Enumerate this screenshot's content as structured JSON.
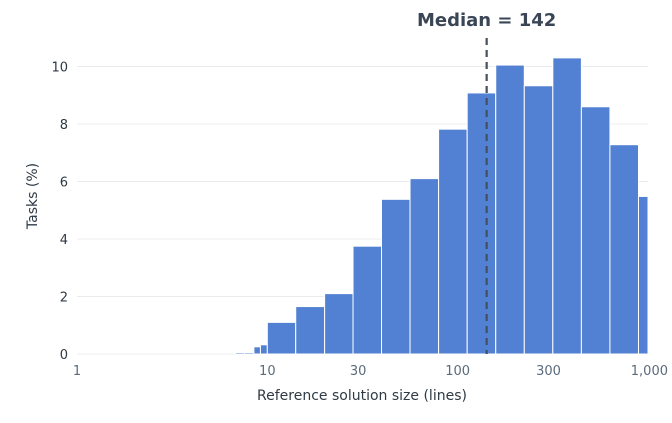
{
  "chart_data": {
    "type": "bar",
    "xlabel": "Reference solution size (lines)",
    "ylabel": "Tasks (%)",
    "x_scale": "log",
    "xlim": [
      1,
      1000
    ],
    "ylim": [
      0,
      11
    ],
    "grid": true,
    "xticks": [
      {
        "value": 1,
        "label": "1"
      },
      {
        "value": 10,
        "label": "10"
      },
      {
        "value": 30,
        "label": "30"
      },
      {
        "value": 100,
        "label": "100"
      },
      {
        "value": 300,
        "label": "300"
      },
      {
        "value": 1000,
        "label": "1,000"
      }
    ],
    "yticks": [
      0,
      2,
      4,
      6,
      8,
      10
    ],
    "bins": [
      {
        "x0": 6.8,
        "x1": 7.6,
        "value": 0.05
      },
      {
        "x0": 7.6,
        "x1": 8.5,
        "value": 0.05
      },
      {
        "x0": 8.5,
        "x1": 9.2,
        "value": 0.25
      },
      {
        "x0": 9.2,
        "x1": 10.0,
        "value": 0.32
      },
      {
        "x0": 10.0,
        "x1": 14.1,
        "value": 1.1
      },
      {
        "x0": 14.1,
        "x1": 20.0,
        "value": 1.65
      },
      {
        "x0": 20.0,
        "x1": 28.2,
        "value": 2.1
      },
      {
        "x0": 28.2,
        "x1": 39.8,
        "value": 3.75
      },
      {
        "x0": 39.8,
        "x1": 56.2,
        "value": 5.38
      },
      {
        "x0": 56.2,
        "x1": 79.4,
        "value": 6.1
      },
      {
        "x0": 79.4,
        "x1": 112.2,
        "value": 7.82
      },
      {
        "x0": 112.2,
        "x1": 158.5,
        "value": 9.08
      },
      {
        "x0": 158.5,
        "x1": 223.9,
        "value": 10.05
      },
      {
        "x0": 223.9,
        "x1": 316.2,
        "value": 9.33
      },
      {
        "x0": 316.2,
        "x1": 446.7,
        "value": 10.3
      },
      {
        "x0": 446.7,
        "x1": 631.0,
        "value": 8.6
      },
      {
        "x0": 631.0,
        "x1": 891.3,
        "value": 7.28
      },
      {
        "x0": 891.3,
        "x1": 1258.9,
        "value": 5.48
      }
    ],
    "median": {
      "value": 142,
      "label": "Median = 142"
    }
  }
}
